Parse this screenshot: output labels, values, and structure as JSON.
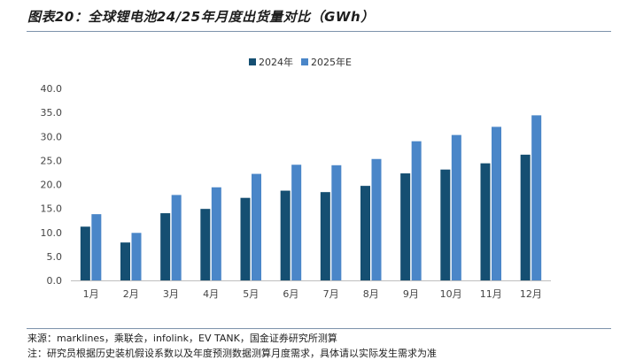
{
  "header": {
    "title": "图表20：全球锂电池24/25年月度出货量对比（GWh）"
  },
  "footer": {
    "source": "来源：marklines，乘联会，infolink，EV TANK，国金证券研究所测算",
    "note": "注：研究员根据历史装机假设系数以及年度预测数据测算月度需求，具体请以实际发生需求为准"
  },
  "colors": {
    "series_2024": "#154f72",
    "series_2025": "#4a86c8",
    "axis": "#bfbfbf",
    "tick_text": "#444444"
  },
  "chart_data": {
    "type": "bar",
    "title": "全球锂电池24/25年月度出货量对比（GWh）",
    "xlabel": "",
    "ylabel": "",
    "ylim": [
      0,
      40
    ],
    "y_ticks": [
      "0.0",
      "5.0",
      "10.0",
      "15.0",
      "20.0",
      "25.0",
      "30.0",
      "35.0",
      "40.0"
    ],
    "legend_position": "top-center",
    "grid": false,
    "categories": [
      "1月",
      "2月",
      "3月",
      "4月",
      "5月",
      "6月",
      "7月",
      "8月",
      "9月",
      "10月",
      "11月",
      "12月"
    ],
    "series": [
      {
        "name": "2024年",
        "values": [
          11.2,
          7.9,
          14.0,
          14.9,
          17.2,
          18.7,
          18.4,
          19.7,
          22.3,
          23.1,
          24.4,
          26.2
        ]
      },
      {
        "name": "2025年E",
        "values": [
          13.8,
          9.9,
          17.8,
          19.4,
          22.2,
          24.1,
          24.0,
          25.3,
          29.0,
          30.3,
          32.0,
          34.4
        ]
      }
    ]
  }
}
